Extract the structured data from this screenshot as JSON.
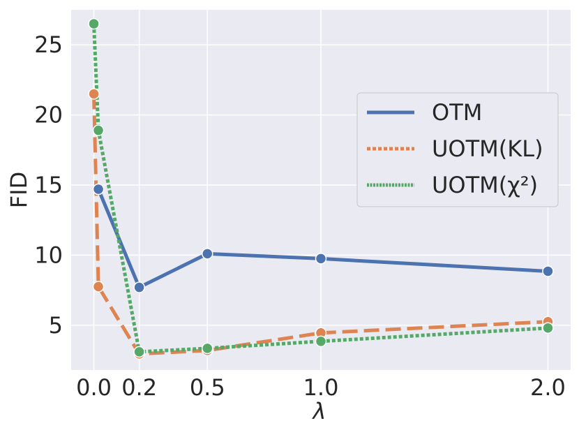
{
  "chart_data": {
    "type": "line",
    "xlabel": "λ",
    "ylabel": "FID",
    "xlim": [
      -0.1,
      2.1
    ],
    "ylim": [
      1.8,
      27.5
    ],
    "x_ticks": [
      0.0,
      0.2,
      0.5,
      1.0,
      2.0
    ],
    "x_tick_labels": [
      "0.0",
      "0.2",
      "0.5",
      "1.0",
      "2.0"
    ],
    "y_ticks": [
      5,
      10,
      15,
      20,
      25
    ],
    "y_tick_labels": [
      "5",
      "10",
      "15",
      "20",
      "25"
    ],
    "grid": true,
    "legend_position": "center-right",
    "series": [
      {
        "name": "OTM",
        "color": "#4c72b0",
        "style": "solid",
        "x": [
          0.02,
          0.2,
          0.5,
          1.0,
          2.0
        ],
        "y": [
          14.7,
          7.7,
          10.1,
          9.75,
          8.85
        ]
      },
      {
        "name": "UOTM(KL)",
        "color": "#dd8452",
        "style": "dashed",
        "x": [
          0.0,
          0.02,
          0.2,
          0.5,
          1.0,
          2.0
        ],
        "y": [
          21.5,
          7.75,
          2.95,
          3.2,
          4.45,
          5.25
        ]
      },
      {
        "name": "UOTM(χ²)",
        "color": "#55a868",
        "style": "dotted",
        "x": [
          0.0,
          0.02,
          0.2,
          0.5,
          1.0,
          2.0
        ],
        "y": [
          26.5,
          18.9,
          3.1,
          3.35,
          3.85,
          4.8
        ]
      }
    ]
  }
}
